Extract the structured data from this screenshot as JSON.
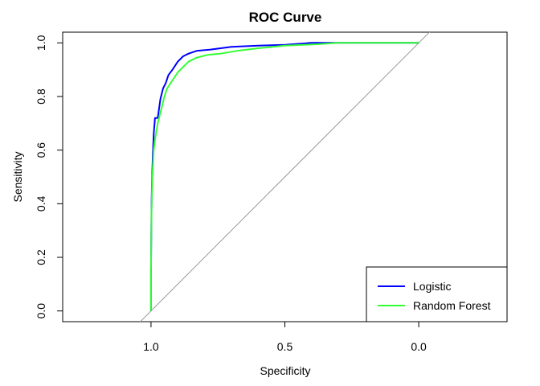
{
  "chart_data": {
    "type": "line",
    "title": "ROC Curve",
    "xlabel": "Specificity",
    "ylabel": "Sensitivity",
    "xlim": [
      1.33,
      -0.33
    ],
    "ylim": [
      -0.04,
      1.04
    ],
    "x_reversed": true,
    "x_ticks": [
      1.0,
      0.5,
      0.0
    ],
    "x_tick_labels": [
      "1.0",
      "0.5",
      "0.0"
    ],
    "y_ticks": [
      0.0,
      0.2,
      0.4,
      0.6,
      0.8,
      1.0
    ],
    "y_tick_labels": [
      "0.0",
      "0.2",
      "0.4",
      "0.6",
      "0.8",
      "1.0"
    ],
    "grid": false,
    "legend": "bottom-right",
    "reference_line": {
      "color": "#999999",
      "description": "diagonal chance line"
    },
    "series": [
      {
        "name": "Logistic",
        "color": "#0000ff",
        "points": [
          [
            1.0,
            0.0
          ],
          [
            1.0,
            0.15
          ],
          [
            0.998,
            0.4
          ],
          [
            0.996,
            0.5
          ],
          [
            0.993,
            0.59
          ],
          [
            0.99,
            0.66
          ],
          [
            0.985,
            0.72
          ],
          [
            0.975,
            0.72
          ],
          [
            0.965,
            0.79
          ],
          [
            0.955,
            0.83
          ],
          [
            0.945,
            0.85
          ],
          [
            0.935,
            0.88
          ],
          [
            0.92,
            0.9
          ],
          [
            0.9,
            0.93
          ],
          [
            0.88,
            0.95
          ],
          [
            0.86,
            0.96
          ],
          [
            0.83,
            0.97
          ],
          [
            0.78,
            0.975
          ],
          [
            0.7,
            0.985
          ],
          [
            0.6,
            0.99
          ],
          [
            0.5,
            0.993
          ],
          [
            0.4,
            1.0
          ],
          [
            0.3,
            1.0
          ],
          [
            0.0,
            1.0
          ]
        ]
      },
      {
        "name": "Random Forest",
        "color": "#33ff33",
        "points": [
          [
            1.0,
            0.0
          ],
          [
            1.0,
            0.15
          ],
          [
            0.998,
            0.38
          ],
          [
            0.995,
            0.5
          ],
          [
            0.99,
            0.6
          ],
          [
            0.985,
            0.64
          ],
          [
            0.975,
            0.7
          ],
          [
            0.96,
            0.76
          ],
          [
            0.95,
            0.8
          ],
          [
            0.94,
            0.83
          ],
          [
            0.92,
            0.86
          ],
          [
            0.9,
            0.89
          ],
          [
            0.88,
            0.91
          ],
          [
            0.86,
            0.93
          ],
          [
            0.83,
            0.945
          ],
          [
            0.79,
            0.955
          ],
          [
            0.74,
            0.96
          ],
          [
            0.68,
            0.97
          ],
          [
            0.6,
            0.98
          ],
          [
            0.5,
            0.99
          ],
          [
            0.38,
            0.995
          ],
          [
            0.3,
            1.0
          ],
          [
            0.0,
            1.0
          ]
        ]
      }
    ]
  }
}
